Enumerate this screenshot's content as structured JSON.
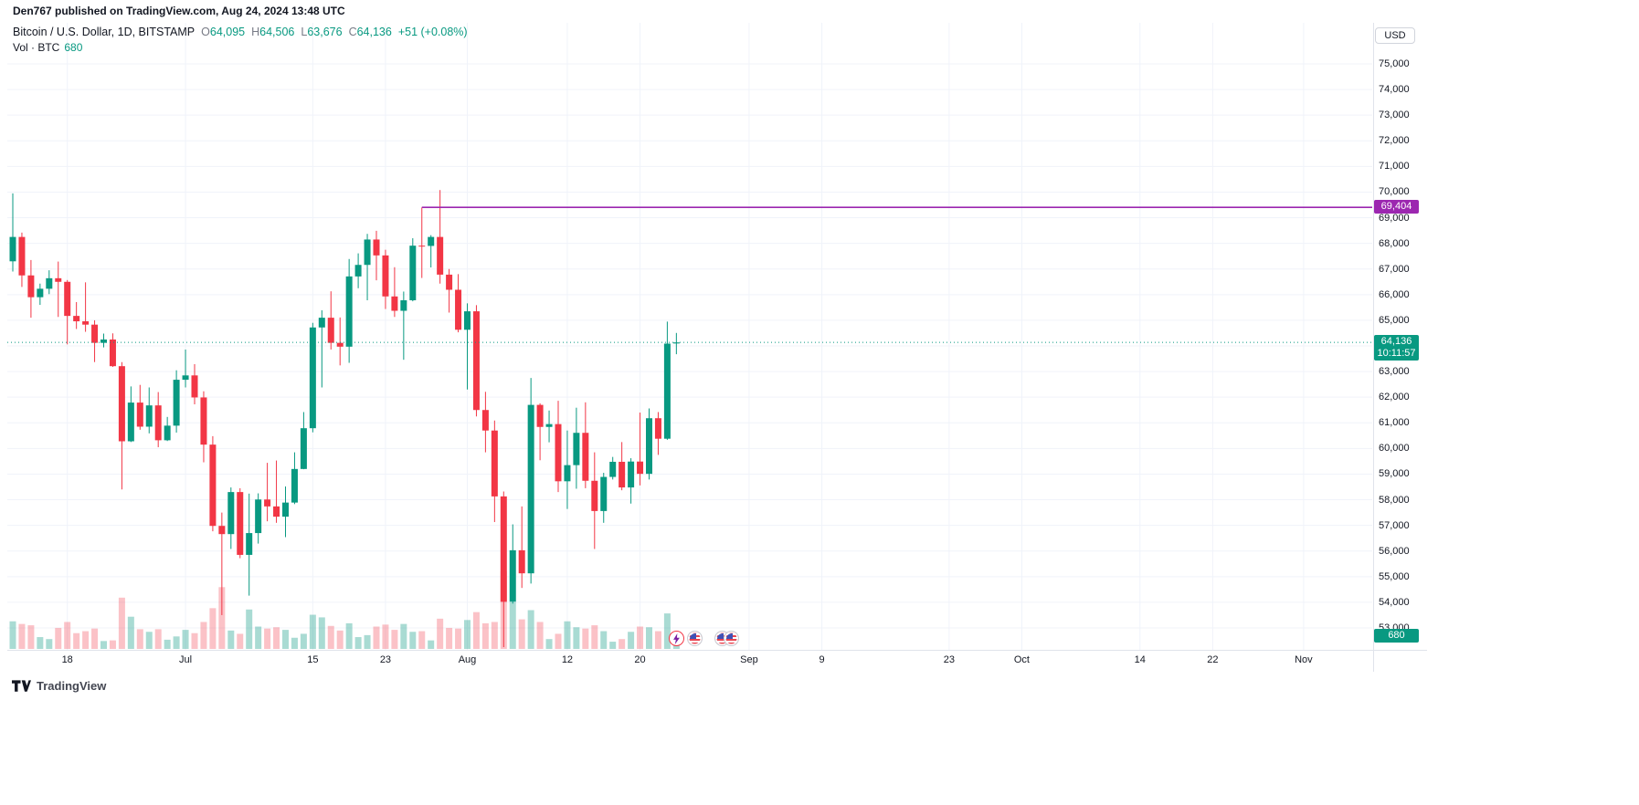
{
  "attribution": "Den767 published on TradingView.com, Aug 24, 2024 13:48 UTC",
  "legend": {
    "symbol": "Bitcoin / U.S. Dollar, 1D, BITSTAMP",
    "o_label": "O",
    "o": "64,095",
    "h_label": "H",
    "h": "64,506",
    "l_label": "L",
    "l": "63,676",
    "c_label": "C",
    "c": "64,136",
    "change": "+51 (+0.08%)",
    "vol_label": "Vol · BTC",
    "vol_value": "680"
  },
  "price_scale": {
    "currency": "USD",
    "tick_values": [
      75000,
      74000,
      73000,
      72000,
      71000,
      70000,
      69000,
      68000,
      67000,
      66000,
      65000,
      64000,
      63000,
      62000,
      61000,
      60000,
      59000,
      58000,
      57000,
      56000,
      55000,
      54000,
      53000
    ],
    "ray_label": "69,404",
    "last_price_label": "64,136",
    "countdown": "10:11:57",
    "volume_label": "680"
  },
  "time_scale": {
    "ticks": [
      [
        "18",
        "2024-06-18"
      ],
      [
        "Jul",
        "2024-07-01"
      ],
      [
        "15",
        "2024-07-15"
      ],
      [
        "23",
        "2024-07-23"
      ],
      [
        "Aug",
        "2024-08-01"
      ],
      [
        "12",
        "2024-08-12"
      ],
      [
        "20",
        "2024-08-20"
      ],
      [
        "Sep",
        "2024-09-01"
      ],
      [
        "9",
        "2024-09-09"
      ],
      [
        "23",
        "2024-09-23"
      ],
      [
        "Oct",
        "2024-10-01"
      ],
      [
        "14",
        "2024-10-14"
      ],
      [
        "22",
        "2024-10-22"
      ],
      [
        "Nov",
        "2024-11-01"
      ]
    ]
  },
  "events": [
    [
      "lightning",
      "2024-08-24"
    ],
    [
      "us-flag",
      "2024-08-26"
    ],
    [
      "us-flag",
      "2024-08-29"
    ],
    [
      "us-flag",
      "2024-08-30"
    ]
  ],
  "logo": {
    "text": "TradingView"
  },
  "colors": {
    "up": "#089981",
    "down": "#f23645",
    "volume_up": "rgba(8,153,129,0.35)",
    "volume_down": "rgba(242,54,69,0.30)",
    "grid": "#f0f3fa",
    "axis_border": "#e0e3eb",
    "ray": "#9c27b0",
    "label_green": "#089981",
    "text": "#131722"
  },
  "chart_data": {
    "type": "candlestick",
    "title": "Bitcoin / U.S. Dollar",
    "interval": "1D",
    "exchange": "BITSTAMP",
    "ylabel": "USD",
    "y_visible_range": [
      52150,
      76600
    ],
    "x_visible_range": [
      "2024-06-12",
      "2024-11-05"
    ],
    "grid": true,
    "price_line": 64136,
    "horizontal_ray": {
      "price": 69404,
      "start_date": "2024-07-27"
    },
    "columns": [
      "date",
      "open",
      "high",
      "low",
      "close",
      "volume_btc"
    ],
    "candles": [
      [
        "2024-06-12",
        67300,
        69950,
        66900,
        68250,
        4200
      ],
      [
        "2024-06-13",
        68250,
        68420,
        66300,
        66750,
        3800
      ],
      [
        "2024-06-14",
        66750,
        67350,
        65100,
        65900,
        3600
      ],
      [
        "2024-06-15",
        65900,
        66430,
        65600,
        66230,
        1800
      ],
      [
        "2024-06-16",
        66230,
        66950,
        66020,
        66640,
        1500
      ],
      [
        "2024-06-17",
        66640,
        67290,
        65130,
        66500,
        3200
      ],
      [
        "2024-06-18",
        66500,
        66570,
        64060,
        65170,
        4100
      ],
      [
        "2024-06-19",
        65170,
        65710,
        64660,
        64960,
        2400
      ],
      [
        "2024-06-20",
        64960,
        66480,
        64550,
        64830,
        2700
      ],
      [
        "2024-06-21",
        64830,
        65000,
        63370,
        64120,
        3100
      ],
      [
        "2024-06-22",
        64120,
        64480,
        63940,
        64250,
        1200
      ],
      [
        "2024-06-23",
        64250,
        64490,
        63180,
        63210,
        1300
      ],
      [
        "2024-06-24",
        63210,
        63370,
        58400,
        60280,
        7800
      ],
      [
        "2024-06-25",
        60280,
        62420,
        60250,
        61790,
        4900
      ],
      [
        "2024-06-26",
        61790,
        62480,
        60730,
        60850,
        3000
      ],
      [
        "2024-06-27",
        60850,
        62380,
        60590,
        61680,
        2600
      ],
      [
        "2024-06-28",
        61680,
        62200,
        60050,
        60320,
        3000
      ],
      [
        "2024-06-29",
        60320,
        61230,
        60290,
        60890,
        1400
      ],
      [
        "2024-06-30",
        60890,
        63050,
        60620,
        62680,
        1900
      ],
      [
        "2024-07-01",
        62680,
        63860,
        62380,
        62850,
        2900
      ],
      [
        "2024-07-02",
        62850,
        63290,
        61720,
        61990,
        2400
      ],
      [
        "2024-07-03",
        61990,
        62230,
        59460,
        60150,
        4100
      ],
      [
        "2024-07-04",
        60150,
        60480,
        56770,
        56980,
        6200
      ],
      [
        "2024-07-05",
        56980,
        57500,
        53500,
        56660,
        9400
      ],
      [
        "2024-07-06",
        56660,
        58480,
        56080,
        58300,
        2800
      ],
      [
        "2024-07-07",
        58300,
        58450,
        55720,
        55850,
        2300
      ],
      [
        "2024-07-08",
        55850,
        58240,
        54260,
        56700,
        6000
      ],
      [
        "2024-07-09",
        56700,
        58250,
        56290,
        58010,
        3400
      ],
      [
        "2024-07-10",
        58010,
        59440,
        57160,
        57740,
        3100
      ],
      [
        "2024-07-11",
        57740,
        59530,
        57100,
        57340,
        3300
      ],
      [
        "2024-07-12",
        57340,
        58520,
        56540,
        57890,
        2900
      ],
      [
        "2024-07-13",
        57890,
        59850,
        57830,
        59200,
        1700
      ],
      [
        "2024-07-14",
        59200,
        61420,
        59190,
        60790,
        2300
      ],
      [
        "2024-07-15",
        60790,
        64900,
        60630,
        64720,
        5200
      ],
      [
        "2024-07-16",
        64720,
        65390,
        62380,
        65100,
        4800
      ],
      [
        "2024-07-17",
        65100,
        66130,
        63860,
        64120,
        3500
      ],
      [
        "2024-07-18",
        64120,
        65110,
        63240,
        63970,
        2800
      ],
      [
        "2024-07-19",
        63970,
        67390,
        63340,
        66710,
        3900
      ],
      [
        "2024-07-20",
        66710,
        67610,
        66250,
        67160,
        1800
      ],
      [
        "2024-07-21",
        67160,
        68370,
        65780,
        68150,
        2100
      ],
      [
        "2024-07-22",
        68150,
        68490,
        66560,
        67530,
        3400
      ],
      [
        "2024-07-23",
        67530,
        67750,
        65440,
        65930,
        3700
      ],
      [
        "2024-07-24",
        65930,
        67070,
        65130,
        65370,
        2900
      ],
      [
        "2024-07-25",
        65370,
        66120,
        63460,
        65780,
        3800
      ],
      [
        "2024-07-26",
        65780,
        68200,
        65740,
        67910,
        2600
      ],
      [
        "2024-07-27",
        67910,
        69400,
        66650,
        67900,
        2700
      ],
      [
        "2024-07-28",
        67900,
        68320,
        67060,
        68250,
        1300
      ],
      [
        "2024-07-29",
        68250,
        70080,
        66430,
        66780,
        4600
      ],
      [
        "2024-07-30",
        66780,
        67000,
        65300,
        66190,
        3200
      ],
      [
        "2024-07-31",
        66190,
        66800,
        64530,
        64630,
        3100
      ],
      [
        "2024-08-01",
        64630,
        65660,
        62300,
        65350,
        4400
      ],
      [
        "2024-08-02",
        65350,
        65590,
        61250,
        61500,
        5600
      ],
      [
        "2024-08-03",
        61500,
        62210,
        59850,
        60700,
        3900
      ],
      [
        "2024-08-04",
        60700,
        61090,
        57130,
        58130,
        4100
      ],
      [
        "2024-08-05",
        58130,
        58320,
        49100,
        54020,
        11800
      ],
      [
        "2024-08-06",
        54020,
        57040,
        53950,
        56030,
        7100
      ],
      [
        "2024-08-07",
        56030,
        57740,
        54560,
        55130,
        4500
      ],
      [
        "2024-08-08",
        55130,
        62750,
        54730,
        61700,
        5900
      ],
      [
        "2024-08-09",
        61700,
        61760,
        59540,
        60840,
        4100
      ],
      [
        "2024-08-10",
        60840,
        61480,
        60240,
        60950,
        1500
      ],
      [
        "2024-08-11",
        60950,
        61860,
        58300,
        58720,
        2300
      ],
      [
        "2024-08-12",
        58720,
        60700,
        57640,
        59350,
        4200
      ],
      [
        "2024-08-13",
        59350,
        61590,
        58430,
        60610,
        3300
      ],
      [
        "2024-08-14",
        60610,
        61800,
        58450,
        58740,
        3100
      ],
      [
        "2024-08-15",
        58740,
        59850,
        56080,
        57560,
        3600
      ],
      [
        "2024-08-16",
        57560,
        59050,
        57100,
        58890,
        2700
      ],
      [
        "2024-08-17",
        58890,
        59670,
        58790,
        59480,
        1100
      ],
      [
        "2024-08-18",
        59480,
        60250,
        58370,
        58480,
        1500
      ],
      [
        "2024-08-19",
        58480,
        59620,
        57850,
        59490,
        2600
      ],
      [
        "2024-08-20",
        59490,
        61400,
        58560,
        59010,
        3400
      ],
      [
        "2024-08-21",
        59010,
        61560,
        58790,
        61180,
        3300
      ],
      [
        "2024-08-22",
        61180,
        61420,
        59750,
        60380,
        2700
      ],
      [
        "2024-08-23",
        60380,
        64950,
        60340,
        64090,
        5400
      ],
      [
        "2024-08-24",
        64095,
        64506,
        63676,
        64136,
        680
      ]
    ]
  }
}
